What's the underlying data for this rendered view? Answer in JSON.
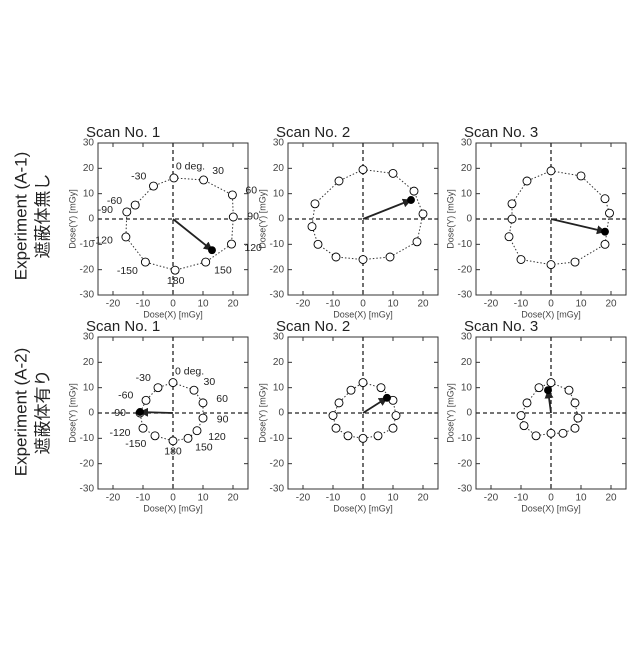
{
  "rows": [
    {
      "label": "Experiment (A-1)",
      "sublabel": "遮蔽体無し"
    },
    {
      "label": "Experiment (A-2)",
      "sublabel": "遮蔽体有り"
    }
  ],
  "chart_data": [
    {
      "type": "scatter",
      "title": "Scan No. 1",
      "xlabel": "Dose(X) [mGy]",
      "ylabel": "Dose(Y) [mGy]",
      "xlim": [
        -25,
        25
      ],
      "ylim": [
        -30,
        30
      ],
      "xticks": [
        -20,
        -10,
        0,
        10,
        20
      ],
      "yticks": [
        -30,
        -20,
        -10,
        0,
        10,
        20,
        30
      ],
      "zero_lines": true,
      "series": [
        {
          "marker": "open",
          "color": "#000000",
          "x": [
            0.3,
            10.2,
            19.8,
            20.1,
            19.5,
            10.9,
            0.7,
            -9.2,
            -15.7,
            -15.4,
            -12.6,
            -6.5
          ],
          "values": [
            16.2,
            15.4,
            9.5,
            0.8,
            -9.9,
            -17,
            -20.2,
            -17,
            -7.1,
            2.8,
            5.5,
            13
          ],
          "point_labels": [
            "0 deg.",
            "30",
            "60",
            "90",
            "120",
            "150",
            "180",
            "-150",
            "-120",
            "-90",
            "-60",
            "-30"
          ]
        },
        {
          "marker": "filled",
          "color": "#000000",
          "x": [
            13
          ],
          "values": [
            -12.3
          ],
          "arrow": true
        }
      ]
    },
    {
      "type": "scatter",
      "title": "Scan No. 2",
      "xlabel": "Dose(X) [mGy]",
      "ylabel": "Dose(Y) [mGy]",
      "xlim": [
        -25,
        25
      ],
      "ylim": [
        -30,
        30
      ],
      "xticks": [
        -20,
        -10,
        0,
        10,
        20
      ],
      "yticks": [
        -30,
        -20,
        -10,
        0,
        10,
        20,
        30
      ],
      "zero_lines": true,
      "series": [
        {
          "marker": "open",
          "color": "#000000",
          "x": [
            0,
            10,
            17,
            20,
            18,
            9,
            0,
            -9,
            -15,
            -17,
            -16,
            -8
          ],
          "values": [
            19.5,
            18,
            11,
            2,
            -9,
            -15,
            -16,
            -15,
            -10,
            -3,
            6,
            15
          ]
        },
        {
          "marker": "filled",
          "color": "#000000",
          "x": [
            16
          ],
          "values": [
            7.5
          ],
          "arrow": true
        }
      ]
    },
    {
      "type": "scatter",
      "title": "Scan No. 3",
      "xlabel": "Dose(X) [mGy]",
      "ylabel": "Dose(Y) [mGy]",
      "xlim": [
        -25,
        25
      ],
      "ylim": [
        -30,
        30
      ],
      "xticks": [
        -20,
        -10,
        0,
        10,
        20
      ],
      "yticks": [
        -30,
        -20,
        -10,
        0,
        10,
        20,
        30
      ],
      "zero_lines": true,
      "series": [
        {
          "marker": "open",
          "color": "#000000",
          "x": [
            0,
            10,
            18,
            19.5,
            18,
            8,
            0,
            -10,
            -14,
            -13,
            -13,
            -8
          ],
          "values": [
            19,
            17,
            8,
            2.3,
            -10,
            -17,
            -18,
            -16,
            -7,
            0,
            6,
            15
          ]
        },
        {
          "marker": "filled",
          "color": "#000000",
          "x": [
            18
          ],
          "values": [
            -5
          ],
          "arrow": true
        }
      ]
    },
    {
      "type": "scatter",
      "title": "Scan No. 1",
      "xlabel": "Dose(X) [mGy]",
      "ylabel": "Dose(Y) [mGy]",
      "xlim": [
        -25,
        25
      ],
      "ylim": [
        -30,
        30
      ],
      "xticks": [
        -20,
        -10,
        0,
        10,
        20
      ],
      "yticks": [
        -30,
        -20,
        -10,
        0,
        10,
        20,
        30
      ],
      "zero_lines": true,
      "series": [
        {
          "marker": "open",
          "color": "#000000",
          "x": [
            0,
            7,
            10,
            10,
            8,
            5,
            0,
            -6,
            -10,
            -11,
            -9,
            -5
          ],
          "values": [
            12,
            9,
            4,
            -2,
            -7,
            -10,
            -11,
            -9,
            -6,
            0,
            5,
            10
          ],
          "point_labels": [
            "0 deg.",
            "30",
            "60",
            "90",
            "120",
            "150",
            "180",
            "-150",
            "-120",
            "-90",
            "-60",
            "-30"
          ]
        },
        {
          "marker": "filled",
          "color": "#000000",
          "x": [
            -11
          ],
          "values": [
            0.4
          ],
          "arrow": true
        }
      ]
    },
    {
      "type": "scatter",
      "title": "Scan No. 2",
      "xlabel": "Dose(X) [mGy]",
      "ylabel": "Dose(Y) [mGy]",
      "xlim": [
        -25,
        25
      ],
      "ylim": [
        -30,
        30
      ],
      "xticks": [
        -20,
        -10,
        0,
        10,
        20
      ],
      "yticks": [
        -30,
        -20,
        -10,
        0,
        10,
        20,
        30
      ],
      "zero_lines": true,
      "series": [
        {
          "marker": "open",
          "color": "#000000",
          "x": [
            0,
            6,
            10,
            11,
            10,
            5,
            0,
            -5,
            -9,
            -10,
            -8,
            -4
          ],
          "values": [
            12,
            10,
            5,
            -1,
            -6,
            -9,
            -10,
            -9,
            -6,
            -1,
            4,
            9
          ]
        },
        {
          "marker": "filled",
          "color": "#000000",
          "x": [
            8
          ],
          "values": [
            6
          ],
          "arrow": true
        }
      ]
    },
    {
      "type": "scatter",
      "title": "Scan No. 3",
      "xlabel": "Dose(X) [mGy]",
      "ylabel": "Dose(Y) [mGy]",
      "xlim": [
        -25,
        25
      ],
      "ylim": [
        -30,
        30
      ],
      "xticks": [
        -20,
        -10,
        0,
        10,
        20
      ],
      "yticks": [
        -30,
        -20,
        -10,
        0,
        10,
        20,
        30
      ],
      "zero_lines": true,
      "series": [
        {
          "marker": "open",
          "color": "#000000",
          "x": [
            0,
            6,
            8,
            9,
            8,
            4,
            0,
            -5,
            -9,
            -10,
            -8,
            -4
          ],
          "values": [
            12,
            9,
            4,
            -2,
            -6,
            -8,
            -8,
            -9,
            -5,
            -1,
            4,
            10
          ]
        },
        {
          "marker": "filled",
          "color": "#000000",
          "x": [
            -1
          ],
          "values": [
            9
          ],
          "arrow": true
        }
      ]
    }
  ]
}
